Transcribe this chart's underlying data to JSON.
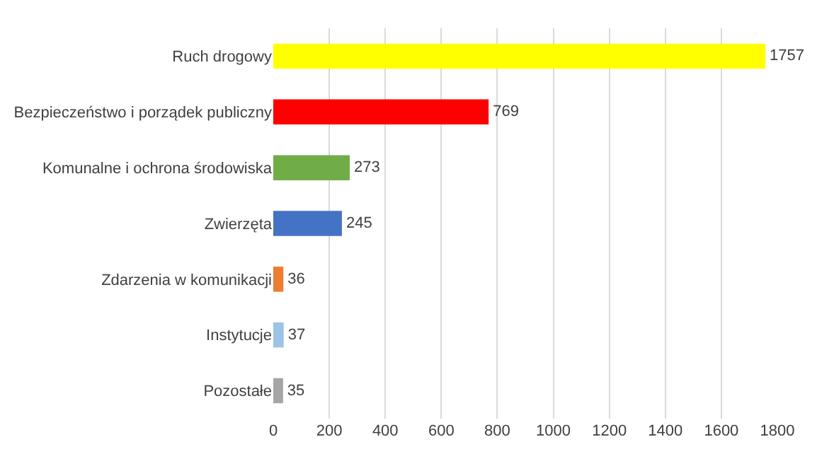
{
  "chart_data": {
    "type": "bar",
    "orientation": "horizontal",
    "categories": [
      "Ruch drogowy",
      "Bezpieczeństwo i porządek publiczny",
      "Komunalne i ochrona środowiska",
      "Zwierzęta",
      "Zdarzenia w komunikacji",
      "Instytucje",
      "Pozostałe"
    ],
    "values": [
      1757,
      769,
      273,
      245,
      36,
      37,
      35
    ],
    "colors": [
      "#ffff00",
      "#ff0000",
      "#70ad47",
      "#4472c4",
      "#ed7d31",
      "#9dc3e6",
      "#a5a5a5"
    ],
    "xlim": [
      0,
      1800
    ],
    "xticks": [
      0,
      200,
      400,
      600,
      800,
      1000,
      1200,
      1400,
      1600,
      1800
    ],
    "grid": "x",
    "data_labels": true,
    "legend": false
  }
}
